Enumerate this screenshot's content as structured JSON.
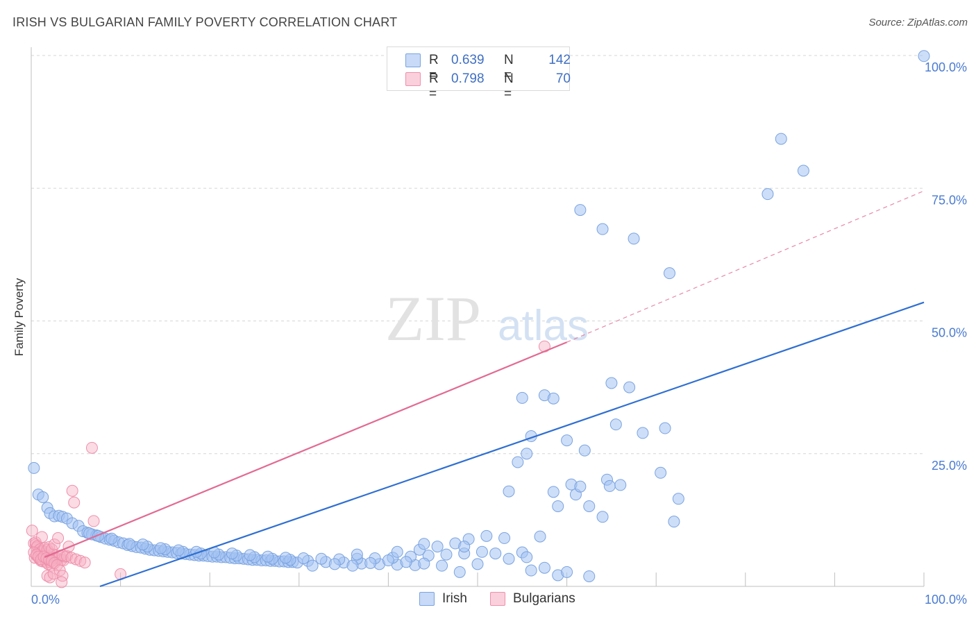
{
  "header": {
    "title": "IRISH VS BULGARIAN FAMILY POVERTY CORRELATION CHART",
    "source": "Source: ZipAtlas.com"
  },
  "watermark": {
    "zip": "ZIP",
    "atlas": "atlas"
  },
  "colors": {
    "irish_fill": "rgba(164,194,242,0.55)",
    "irish_stroke": "#7aa3e0",
    "irish_line": "#2f6fd1",
    "bulg_fill": "rgba(246,176,196,0.45)",
    "bulg_stroke": "#ee8fab",
    "bulg_line": "#e26a92",
    "axis_label": "#4a7bd0",
    "grid": "#d6d6d6"
  },
  "legend_top": {
    "rows": [
      {
        "r_key": "R =",
        "r_val": "0.639",
        "n_key": "N =",
        "n_val": "142"
      },
      {
        "r_key": "R =",
        "r_val": "0.798",
        "n_key": "N =",
        "n_val": "70"
      }
    ]
  },
  "legend_bottom": {
    "items": [
      "Irish",
      "Bulgarians"
    ]
  },
  "chart_data": {
    "type": "scatter",
    "title": "IRISH VS BULGARIAN FAMILY POVERTY CORRELATION CHART",
    "xlabel": "",
    "ylabel": "Family Poverty",
    "xlim": [
      0,
      100
    ],
    "ylim": [
      0,
      100
    ],
    "x_tick_labels": [
      "0.0%",
      "100.0%"
    ],
    "y_tick_labels": [
      "25.0%",
      "50.0%",
      "75.0%",
      "100.0%"
    ],
    "y_ticks": [
      25,
      50,
      75,
      100
    ],
    "grid": true,
    "series": [
      {
        "name": "Irish",
        "R": 0.639,
        "N": 142,
        "trend": {
          "x": [
            7.7,
            100
          ],
          "y": [
            0,
            53.5
          ],
          "dashed_to": null
        },
        "points": [
          [
            0.3,
            22.3
          ],
          [
            0.8,
            17.3
          ],
          [
            1.3,
            16.8
          ],
          [
            1.8,
            14.8
          ],
          [
            2.1,
            13.8
          ],
          [
            2.6,
            13.2
          ],
          [
            3.1,
            13.3
          ],
          [
            3.5,
            13.1
          ],
          [
            4.0,
            12.8
          ],
          [
            4.6,
            11.9
          ],
          [
            5.3,
            11.4
          ],
          [
            5.8,
            10.4
          ],
          [
            6.3,
            10.1
          ],
          [
            6.8,
            9.8
          ],
          [
            7.3,
            9.6
          ],
          [
            7.8,
            9.3
          ],
          [
            8.3,
            9.0
          ],
          [
            8.8,
            8.8
          ],
          [
            9.3,
            8.6
          ],
          [
            9.8,
            8.3
          ],
          [
            10.3,
            8.1
          ],
          [
            10.8,
            7.8
          ],
          [
            11.3,
            7.6
          ],
          [
            11.8,
            7.4
          ],
          [
            12.3,
            7.3
          ],
          [
            12.8,
            7.1
          ],
          [
            13.3,
            6.9
          ],
          [
            13.8,
            6.8
          ],
          [
            14.3,
            6.7
          ],
          [
            14.8,
            6.6
          ],
          [
            15.3,
            6.5
          ],
          [
            15.8,
            6.4
          ],
          [
            16.3,
            6.3
          ],
          [
            16.8,
            6.2
          ],
          [
            17.3,
            6.1
          ],
          [
            17.8,
            6.0
          ],
          [
            18.3,
            5.9
          ],
          [
            18.8,
            5.8
          ],
          [
            19.3,
            5.8
          ],
          [
            19.8,
            5.7
          ],
          [
            20.3,
            5.6
          ],
          [
            20.8,
            5.6
          ],
          [
            21.3,
            5.5
          ],
          [
            21.8,
            5.5
          ],
          [
            22.3,
            5.4
          ],
          [
            22.8,
            5.3
          ],
          [
            23.3,
            5.3
          ],
          [
            23.8,
            5.2
          ],
          [
            24.3,
            5.1
          ],
          [
            24.8,
            5.0
          ],
          [
            25.3,
            5.0
          ],
          [
            25.8,
            4.9
          ],
          [
            26.3,
            4.9
          ],
          [
            26.8,
            4.8
          ],
          [
            27.3,
            4.8
          ],
          [
            27.8,
            4.7
          ],
          [
            28.3,
            4.7
          ],
          [
            28.8,
            4.6
          ],
          [
            29.3,
            4.6
          ],
          [
            29.8,
            4.5
          ],
          [
            6.5,
            10.0
          ],
          [
            7.5,
            9.5
          ],
          [
            9.0,
            9.0
          ],
          [
            11.0,
            8.0
          ],
          [
            13.0,
            7.5
          ],
          [
            15.0,
            7.0
          ],
          [
            17.0,
            6.5
          ],
          [
            19.0,
            6.2
          ],
          [
            21.0,
            6.0
          ],
          [
            23.0,
            5.8
          ],
          [
            25.0,
            5.5
          ],
          [
            27.0,
            5.2
          ],
          [
            29.0,
            5.0
          ],
          [
            31.0,
            4.8
          ],
          [
            33.0,
            4.6
          ],
          [
            35.0,
            4.5
          ],
          [
            37.0,
            4.3
          ],
          [
            39.0,
            4.2
          ],
          [
            41.0,
            4.1
          ],
          [
            43.0,
            4.0
          ],
          [
            12.5,
            7.9
          ],
          [
            14.5,
            7.2
          ],
          [
            16.5,
            6.8
          ],
          [
            18.5,
            6.5
          ],
          [
            20.5,
            6.4
          ],
          [
            22.5,
            6.2
          ],
          [
            24.5,
            5.9
          ],
          [
            26.5,
            5.6
          ],
          [
            28.5,
            5.4
          ],
          [
            30.5,
            5.3
          ],
          [
            32.5,
            5.2
          ],
          [
            34.5,
            5.1
          ],
          [
            36.5,
            5.2
          ],
          [
            38.5,
            5.3
          ],
          [
            40.5,
            5.4
          ],
          [
            42.5,
            5.6
          ],
          [
            44.5,
            5.8
          ],
          [
            46.5,
            6.0
          ],
          [
            48.5,
            6.2
          ],
          [
            50.5,
            6.5
          ],
          [
            31.5,
            3.9
          ],
          [
            34.0,
            4.2
          ],
          [
            36.0,
            3.9
          ],
          [
            38.0,
            4.4
          ],
          [
            40.0,
            4.9
          ],
          [
            42.0,
            4.6
          ],
          [
            44.0,
            4.3
          ],
          [
            46.0,
            3.9
          ],
          [
            48.0,
            2.7
          ],
          [
            50.0,
            4.2
          ],
          [
            36.5,
            6.0
          ],
          [
            41.0,
            6.5
          ],
          [
            43.5,
            6.9
          ],
          [
            45.5,
            7.5
          ],
          [
            47.5,
            8.1
          ],
          [
            49.0,
            8.9
          ],
          [
            51.0,
            9.5
          ],
          [
            53.0,
            9.1
          ],
          [
            55.0,
            6.4
          ],
          [
            57.0,
            9.4
          ],
          [
            44.0,
            8.0
          ],
          [
            48.5,
            7.5
          ],
          [
            52.0,
            6.2
          ],
          [
            53.5,
            5.2
          ],
          [
            55.5,
            5.5
          ],
          [
            56.0,
            3.0
          ],
          [
            57.5,
            3.5
          ],
          [
            59.0,
            2.1
          ],
          [
            60.0,
            2.7
          ],
          [
            62.5,
            1.9
          ],
          [
            58.5,
            17.8
          ],
          [
            59.0,
            15.1
          ],
          [
            60.5,
            19.2
          ],
          [
            61.0,
            17.3
          ],
          [
            61.5,
            18.8
          ],
          [
            62.5,
            15.1
          ],
          [
            64.0,
            13.1
          ],
          [
            64.5,
            20.1
          ],
          [
            64.8,
            18.9
          ],
          [
            66.0,
            19.1
          ],
          [
            57.5,
            36.0
          ],
          [
            58.5,
            35.4
          ],
          [
            56.0,
            28.3
          ],
          [
            55.5,
            25.0
          ],
          [
            54.5,
            23.4
          ],
          [
            53.5,
            17.9
          ],
          [
            65.5,
            30.5
          ],
          [
            68.5,
            28.9
          ],
          [
            71.0,
            29.8
          ],
          [
            72.0,
            12.2
          ],
          [
            55.0,
            35.5
          ],
          [
            60.0,
            27.5
          ],
          [
            62.0,
            25.6
          ],
          [
            65.0,
            38.3
          ],
          [
            67.0,
            37.5
          ],
          [
            70.5,
            21.4
          ],
          [
            72.5,
            16.5
          ],
          [
            61.5,
            70.9
          ],
          [
            64.0,
            67.3
          ],
          [
            82.5,
            73.9
          ],
          [
            84.0,
            84.3
          ],
          [
            100.0,
            99.9
          ],
          [
            86.5,
            78.3
          ],
          [
            67.5,
            65.5
          ],
          [
            71.5,
            59.0
          ]
        ]
      },
      {
        "name": "Bulgarians",
        "R": 0.798,
        "N": 70,
        "trend": {
          "x": [
            1.5,
            60
          ],
          "y": [
            5.5,
            46.0
          ],
          "dashed_to": [
            100,
            74.5
          ]
        },
        "points": [
          [
            0.1,
            10.5
          ],
          [
            0.3,
            8.1
          ],
          [
            0.5,
            7.9
          ],
          [
            0.6,
            7.3
          ],
          [
            0.8,
            6.7
          ],
          [
            1.0,
            6.5
          ],
          [
            1.2,
            6.8
          ],
          [
            1.4,
            6.1
          ],
          [
            1.6,
            6.0
          ],
          [
            1.8,
            5.8
          ],
          [
            2.0,
            6.4
          ],
          [
            2.2,
            5.6
          ],
          [
            2.4,
            6.1
          ],
          [
            2.6,
            5.4
          ],
          [
            2.8,
            5.3
          ],
          [
            3.0,
            5.2
          ],
          [
            3.2,
            5.8
          ],
          [
            3.4,
            5.0
          ],
          [
            3.6,
            4.9
          ],
          [
            3.8,
            5.6
          ],
          [
            0.4,
            5.4
          ],
          [
            0.6,
            5.8
          ],
          [
            0.9,
            5.2
          ],
          [
            1.1,
            4.8
          ],
          [
            1.3,
            4.7
          ],
          [
            1.5,
            5.5
          ],
          [
            1.7,
            4.5
          ],
          [
            1.9,
            4.2
          ],
          [
            2.1,
            4.6
          ],
          [
            2.3,
            3.9
          ],
          [
            0.5,
            8.3
          ],
          [
            0.7,
            7.6
          ],
          [
            1.0,
            7.0
          ],
          [
            1.2,
            6.6
          ],
          [
            1.5,
            7.2
          ],
          [
            1.8,
            6.9
          ],
          [
            2.0,
            7.4
          ],
          [
            2.3,
            7.0
          ],
          [
            2.6,
            7.9
          ],
          [
            3.0,
            9.1
          ],
          [
            0.3,
            6.4
          ],
          [
            0.6,
            6.0
          ],
          [
            0.8,
            5.6
          ],
          [
            1.1,
            5.1
          ],
          [
            1.4,
            5.6
          ],
          [
            1.7,
            5.3
          ],
          [
            2.0,
            5.0
          ],
          [
            2.3,
            4.8
          ],
          [
            2.6,
            4.4
          ],
          [
            2.9,
            4.0
          ],
          [
            3.5,
            5.9
          ],
          [
            4.0,
            5.7
          ],
          [
            4.5,
            5.4
          ],
          [
            5.0,
            5.1
          ],
          [
            5.5,
            4.8
          ],
          [
            6.0,
            4.5
          ],
          [
            4.6,
            18.0
          ],
          [
            4.8,
            15.8
          ],
          [
            7.0,
            12.3
          ],
          [
            6.8,
            26.1
          ],
          [
            1.8,
            2.0
          ],
          [
            2.1,
            1.7
          ],
          [
            2.5,
            2.4
          ],
          [
            3.2,
            3.0
          ],
          [
            3.5,
            2.0
          ],
          [
            10.0,
            2.3
          ],
          [
            1.2,
            9.3
          ],
          [
            4.2,
            7.5
          ],
          [
            3.4,
            0.8
          ],
          [
            57.5,
            45.2
          ]
        ]
      }
    ]
  }
}
